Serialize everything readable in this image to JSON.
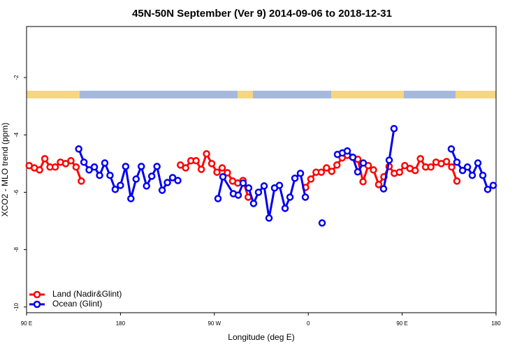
{
  "chart_data": {
    "type": "line",
    "title": "45N-50N September (Ver 9)   2014-09-06 to 2018-12-31",
    "xlabel": "Longitude (deg E)",
    "ylabel": "XCO2 - MLO trend (ppm)",
    "xlim": [
      90,
      540
    ],
    "ylim": [
      -10.2,
      -0.22
    ],
    "xticks": [
      {
        "value": 90,
        "label": "90 E"
      },
      180,
      {
        "value": 270,
        "label": "90 W"
      },
      {
        "value": 360,
        "label": "0"
      },
      {
        "value": 450,
        "label": "90 E"
      },
      {
        "value": 540,
        "label": "180"
      }
    ],
    "yticks": [
      -10,
      -8,
      -6,
      -4,
      -2
    ],
    "legend": "bottom-left",
    "series": [
      {
        "name": "Land (Nadir&Glint)",
        "color": "#ff0000",
        "x": [
          92.5,
          97.5,
          102.5,
          107.5,
          112.5,
          117.5,
          122.5,
          127.5,
          132.5,
          137.5,
          142.5,
          null,
          237.5,
          242.5,
          247.5,
          252.5,
          257.5,
          262.5,
          267.5,
          272.5,
          277.5,
          282.5,
          287.5,
          292.5,
          297.5,
          302.5,
          null,
          357.5,
          362.5,
          367.5,
          372.5,
          377.5,
          382.5,
          387.5,
          392.5,
          397.5,
          402.5,
          407.5,
          412.5,
          417.5,
          422.5,
          427.5,
          432.5,
          437.5,
          442.5,
          447.5,
          452.5,
          457.5,
          462.5,
          467.5,
          472.5,
          477.5,
          482.5,
          487.5,
          492.5,
          497.5,
          502.5
        ],
        "values": [
          -5.07,
          -5.15,
          -5.22,
          -4.83,
          -5.12,
          -5.12,
          -4.95,
          -5.0,
          -4.9,
          -5.12,
          -5.61,
          null,
          -5.05,
          -5.15,
          -4.9,
          -4.9,
          -5.2,
          -4.66,
          -5.0,
          -5.3,
          -5.15,
          -5.32,
          -5.61,
          -5.68,
          -5.59,
          -6.17,
          null,
          -5.83,
          -5.54,
          -5.3,
          -5.3,
          -5.15,
          -5.27,
          -5.05,
          -4.8,
          -4.71,
          -4.78,
          -4.85,
          -5.63,
          -5.07,
          -5.22,
          -5.73,
          -5.46,
          -5.1,
          -5.34,
          -5.3,
          -5.07,
          -5.17,
          -5.24,
          -4.83,
          -5.12,
          -5.12,
          -4.95,
          -5.0,
          -4.93,
          -5.12,
          -5.61
        ]
      },
      {
        "name": "Ocean (Glint)",
        "color": "#0000ee",
        "x": [
          140,
          145,
          150,
          155,
          160,
          165,
          170,
          175,
          180,
          185,
          190,
          195,
          200,
          205,
          210,
          215,
          220,
          225,
          230,
          235,
          null,
          273.5,
          278.2,
          288.2,
          292.9,
          297.6,
          302.9,
          307.6,
          312.3,
          317.7,
          322.4,
          327.7,
          332.4,
          337.8,
          342.5,
          347.2,
          352.5,
          357.2,
          null,
          373.3,
          null,
          388,
          392.7,
          397.4,
          402.7,
          407.4,
          412.8,
          null,
          432.2,
          437.6,
          442.2,
          null,
          497.1,
          502.5,
          507.9,
          512.6,
          517.2,
          522.6,
          527.3,
          532,
          537.3
        ],
        "values": [
          -4.49,
          -4.95,
          -5.22,
          -5.12,
          -5.41,
          -4.98,
          -5.41,
          -5.9,
          -5.76,
          -5.1,
          -6.22,
          -5.54,
          -5.1,
          -5.78,
          -5.44,
          -5.1,
          -5.93,
          -5.66,
          -5.49,
          -5.59,
          null,
          -6.22,
          -5.46,
          -6.05,
          -6.1,
          -5.68,
          -5.85,
          -6.39,
          -6.0,
          -5.78,
          -6.9,
          -5.85,
          -5.76,
          -6.56,
          -6.17,
          -5.51,
          -5.34,
          -6.17,
          null,
          -7.07,
          null,
          -4.68,
          -4.63,
          -4.56,
          -4.78,
          -5.29,
          -4.98,
          null,
          -5.88,
          -4.88,
          -3.78,
          null,
          -4.49,
          -4.95,
          -5.24,
          -5.12,
          -5.41,
          -4.98,
          -5.41,
          -5.9,
          -5.76
        ]
      }
    ]
  }
}
